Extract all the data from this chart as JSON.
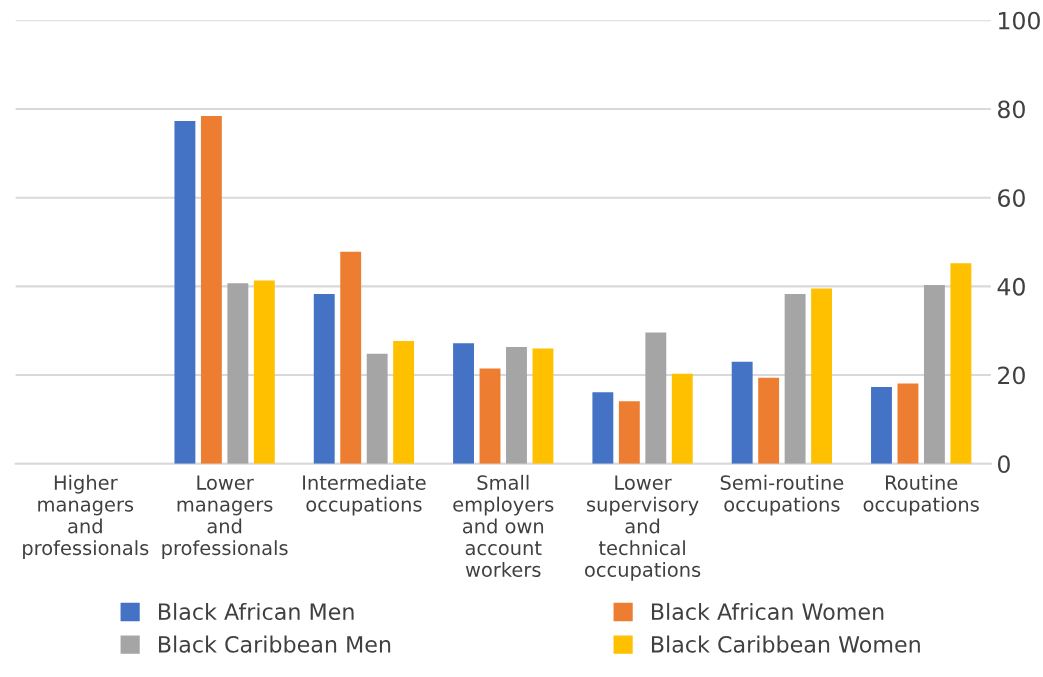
{
  "chart_data": {
    "type": "bar",
    "categories": [
      "Higher managers and professionals",
      "Lower managers and professionals",
      "Intermediate occupations",
      "Small employers and own account workers",
      "Lower supervisory and technical occupations",
      "Semi-routine occupations",
      "Routine occupations"
    ],
    "series": [
      {
        "name": "Black African Men",
        "color": "#4472c4",
        "values": [
          null,
          77.3,
          38.3,
          27.2,
          16.1,
          23.0,
          17.3
        ]
      },
      {
        "name": "Black African Women",
        "color": "#ed7d31",
        "values": [
          null,
          78.4,
          47.8,
          21.5,
          14.1,
          19.4,
          18.1
        ]
      },
      {
        "name": "Black Caribbean Men",
        "color": "#a5a5a5",
        "values": [
          null,
          40.7,
          24.8,
          26.3,
          29.6,
          38.3,
          40.3
        ]
      },
      {
        "name": "Black Caribbean Women",
        "color": "#ffc000",
        "values": [
          null,
          41.3,
          27.7,
          26.0,
          20.3,
          39.5,
          45.2
        ]
      }
    ],
    "ylim": [
      0,
      100
    ],
    "yticks": [
      0,
      20,
      40,
      60,
      80,
      100
    ],
    "grid": "y",
    "legend": "bottom"
  }
}
